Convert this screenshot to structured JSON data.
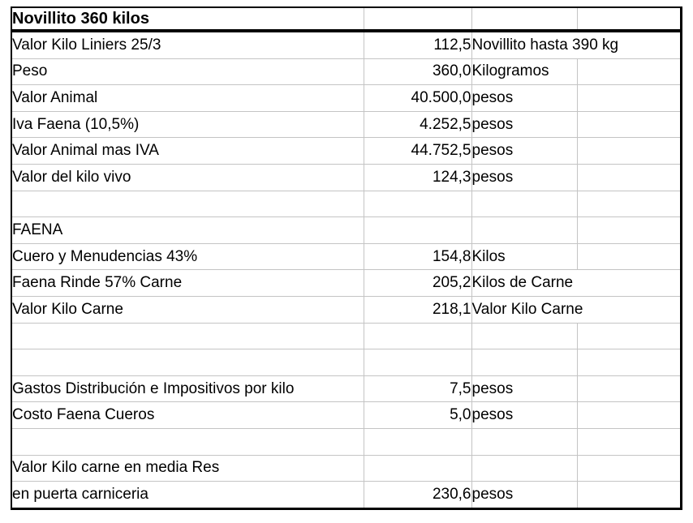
{
  "sheet": {
    "title": "Novillito 360 kilos",
    "columns": [
      "label",
      "value",
      "unit",
      "extra"
    ],
    "rows": [
      {
        "label": "Novillito 360 kilos",
        "value": "",
        "unit": "",
        "header": true
      },
      {
        "label": "Valor Kilo Liniers 25/3",
        "value": "112,5",
        "unit": "Novillito hasta 390 kg",
        "span_unit": true
      },
      {
        "label": "Peso",
        "value": "360,0",
        "unit": "Kilogramos"
      },
      {
        "label": "Valor Animal",
        "value": "40.500,0",
        "unit": "pesos"
      },
      {
        "label": "Iva Faena (10,5%)",
        "value": "4.252,5",
        "unit": "pesos"
      },
      {
        "label": "Valor Animal mas IVA",
        "value": "44.752,5",
        "unit": "pesos"
      },
      {
        "label": "Valor del kilo vivo",
        "value": "124,3",
        "unit": "pesos"
      },
      {
        "label": "",
        "value": "",
        "unit": ""
      },
      {
        "label": "FAENA",
        "value": "",
        "unit": ""
      },
      {
        "label": "Cuero y Menudencias 43%",
        "value": "154,8",
        "unit": "Kilos"
      },
      {
        "label": "Faena Rinde 57% Carne",
        "value": "205,2",
        "unit": "Kilos de Carne",
        "span_unit": true
      },
      {
        "label": "Valor Kilo Carne",
        "value": "218,1",
        "unit": "Valor Kilo Carne",
        "span_unit": true
      },
      {
        "label": "",
        "value": "",
        "unit": ""
      },
      {
        "label": "",
        "value": "",
        "unit": ""
      },
      {
        "label": "Gastos Distribución e Impositivos por kilo",
        "value": "7,5",
        "unit": "pesos"
      },
      {
        "label": "Costo Faena Cueros",
        "value": "5,0",
        "unit": "pesos"
      },
      {
        "label": "",
        "value": "",
        "unit": ""
      },
      {
        "label": "Valor Kilo carne en media Res",
        "value": "",
        "unit": ""
      },
      {
        "label": "en puerta carniceria",
        "value": "230,6",
        "unit": "pesos"
      }
    ]
  },
  "colors": {
    "background": "#ffffff",
    "text": "#000000",
    "gridline": "#c4c4c4",
    "outer_border": "#000000"
  }
}
